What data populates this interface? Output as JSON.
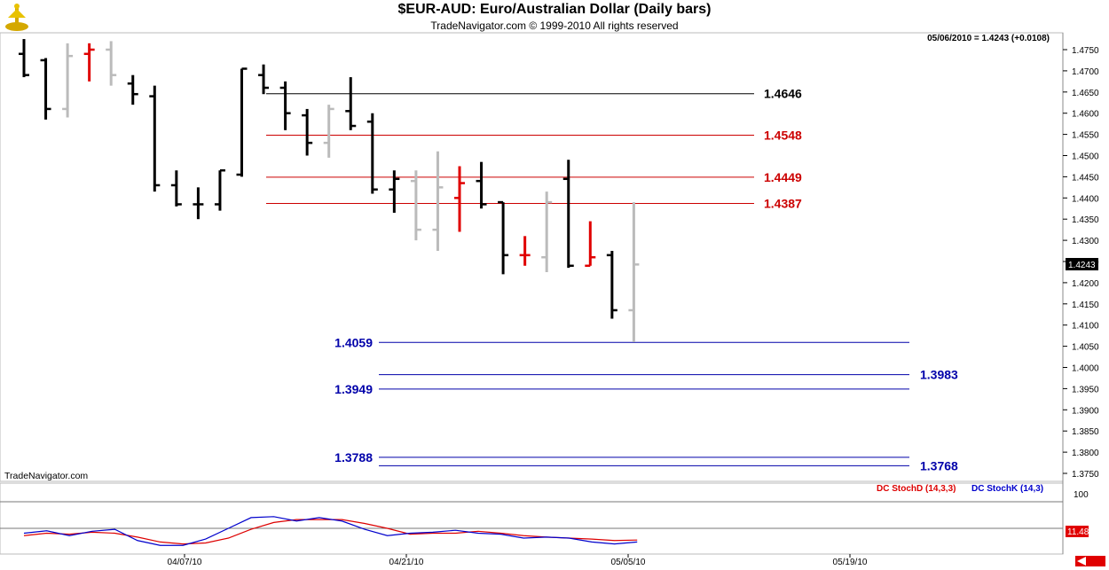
{
  "header": {
    "title": "$EUR-AUD:  Euro/Australian Dollar  (Daily bars)",
    "subtitle": "TradeNavigator.com © 1999-2010 All rights reserved",
    "last_info": "05/06/2010 = 1.4243 (+0.0108)",
    "watermark": "TradeNavigator.com"
  },
  "colors": {
    "up": "#000000",
    "neutral": "#bbbbbb",
    "down": "#e00000",
    "resistance": "#cc0000",
    "support": "#0000aa",
    "stochD": "#dd0000",
    "stochK": "#0000cc"
  },
  "chart_data": [
    {
      "type": "bar",
      "title": "$EUR-AUD:  Euro/Australian Dollar  (Daily bars)",
      "ylim": [
        1.372,
        1.479
      ],
      "yticks": [
        "1.4750",
        "1.4700",
        "1.4650",
        "1.4600",
        "1.4550",
        "1.4500",
        "1.4450",
        "1.4400",
        "1.4350",
        "1.4300",
        "1.4250",
        "1.4200",
        "1.4150",
        "1.4100",
        "1.4050",
        "1.4000",
        "1.3950",
        "1.3900",
        "1.3850",
        "1.3800",
        "1.3750"
      ],
      "xticks": [
        "04/07/10",
        "04/21/10",
        "05/05/10",
        "05/19/10"
      ],
      "last_price_label": "1.4243",
      "bars": [
        {
          "o": 1.474,
          "h": 1.4775,
          "l": 1.4685,
          "c": 1.469,
          "color": "up"
        },
        {
          "o": 1.4725,
          "h": 1.473,
          "l": 1.4585,
          "c": 1.461,
          "color": "up"
        },
        {
          "o": 1.461,
          "h": 1.4765,
          "l": 1.459,
          "c": 1.4735,
          "color": "neutral"
        },
        {
          "o": 1.474,
          "h": 1.4765,
          "l": 1.4675,
          "c": 1.475,
          "color": "down"
        },
        {
          "o": 1.475,
          "h": 1.477,
          "l": 1.4665,
          "c": 1.469,
          "color": "neutral"
        },
        {
          "o": 1.467,
          "h": 1.469,
          "l": 1.462,
          "c": 1.4645,
          "color": "up"
        },
        {
          "o": 1.464,
          "h": 1.4665,
          "l": 1.4415,
          "c": 1.443,
          "color": "up"
        },
        {
          "o": 1.443,
          "h": 1.4465,
          "l": 1.438,
          "c": 1.4385,
          "color": "up"
        },
        {
          "o": 1.4385,
          "h": 1.4425,
          "l": 1.435,
          "c": 1.4385,
          "color": "up"
        },
        {
          "o": 1.4385,
          "h": 1.4465,
          "l": 1.437,
          "c": 1.4465,
          "color": "up"
        },
        {
          "o": 1.4455,
          "h": 1.4705,
          "l": 1.445,
          "c": 1.4705,
          "color": "up"
        },
        {
          "o": 1.469,
          "h": 1.4715,
          "l": 1.4645,
          "c": 1.466,
          "color": "up"
        },
        {
          "o": 1.466,
          "h": 1.4675,
          "l": 1.456,
          "c": 1.46,
          "color": "up"
        },
        {
          "o": 1.4595,
          "h": 1.461,
          "l": 1.45,
          "c": 1.453,
          "color": "up"
        },
        {
          "o": 1.453,
          "h": 1.462,
          "l": 1.4495,
          "c": 1.461,
          "color": "neutral"
        },
        {
          "o": 1.4605,
          "h": 1.4685,
          "l": 1.456,
          "c": 1.457,
          "color": "up"
        },
        {
          "o": 1.458,
          "h": 1.46,
          "l": 1.441,
          "c": 1.442,
          "color": "up"
        },
        {
          "o": 1.442,
          "h": 1.4465,
          "l": 1.4365,
          "c": 1.4445,
          "color": "up"
        },
        {
          "o": 1.444,
          "h": 1.4465,
          "l": 1.43,
          "c": 1.4325,
          "color": "neutral"
        },
        {
          "o": 1.4325,
          "h": 1.451,
          "l": 1.4275,
          "c": 1.4425,
          "color": "neutral"
        },
        {
          "o": 1.44,
          "h": 1.4475,
          "l": 1.432,
          "c": 1.4435,
          "color": "down"
        },
        {
          "o": 1.444,
          "h": 1.4485,
          "l": 1.4375,
          "c": 1.4385,
          "color": "up"
        },
        {
          "o": 1.439,
          "h": 1.439,
          "l": 1.422,
          "c": 1.4265,
          "color": "up"
        },
        {
          "o": 1.4265,
          "h": 1.431,
          "l": 1.424,
          "c": 1.4265,
          "color": "down"
        },
        {
          "o": 1.426,
          "h": 1.4415,
          "l": 1.4225,
          "c": 1.439,
          "color": "neutral"
        },
        {
          "o": 1.4445,
          "h": 1.449,
          "l": 1.4235,
          "c": 1.424,
          "color": "up"
        },
        {
          "o": 1.424,
          "h": 1.4345,
          "l": 1.424,
          "c": 1.426,
          "color": "down"
        },
        {
          "o": 1.4265,
          "h": 1.4275,
          "l": 1.4115,
          "c": 1.4135,
          "color": "up"
        },
        {
          "o": 1.4135,
          "h": 1.439,
          "l": 1.406,
          "c": 1.4243,
          "color": "neutral"
        }
      ],
      "levels": [
        {
          "value": 1.4646,
          "label": "1.4646",
          "kind": "black"
        },
        {
          "value": 1.4548,
          "label": "1.4548",
          "kind": "resistance"
        },
        {
          "value": 1.4449,
          "label": "1.4449",
          "kind": "resistance"
        },
        {
          "value": 1.4387,
          "label": "1.4387",
          "kind": "resistance"
        },
        {
          "value": 1.4059,
          "label": "1.4059",
          "kind": "support"
        },
        {
          "value": 1.3983,
          "label": "1.3983",
          "kind": "support"
        },
        {
          "value": 1.3949,
          "label": "1.3949",
          "kind": "support"
        },
        {
          "value": 1.3788,
          "label": "1.3788",
          "kind": "support"
        },
        {
          "value": 1.3768,
          "label": "1.3768",
          "kind": "support"
        }
      ]
    },
    {
      "type": "line",
      "legend": [
        {
          "name": "DC StochD (14,3,3)",
          "color": "stochD"
        },
        {
          "name": "DC StochK (14,3)",
          "color": "stochK"
        }
      ],
      "yticks": [
        "100"
      ],
      "last_value_label": "11.48",
      "series": [
        {
          "name": "DC StochD (14,3,3)",
          "values": [
            25,
            30,
            28,
            32,
            30,
            22,
            12,
            8,
            10,
            20,
            38,
            52,
            58,
            58,
            58,
            50,
            40,
            28,
            30,
            30,
            34,
            30,
            25,
            22,
            20,
            18,
            15,
            16
          ]
        },
        {
          "name": "DC StochK (14,3)",
          "values": [
            30,
            35,
            25,
            34,
            38,
            15,
            5,
            5,
            18,
            40,
            62,
            64,
            55,
            62,
            55,
            38,
            25,
            30,
            32,
            36,
            30,
            28,
            20,
            22,
            20,
            12,
            8,
            12
          ]
        }
      ]
    }
  ]
}
